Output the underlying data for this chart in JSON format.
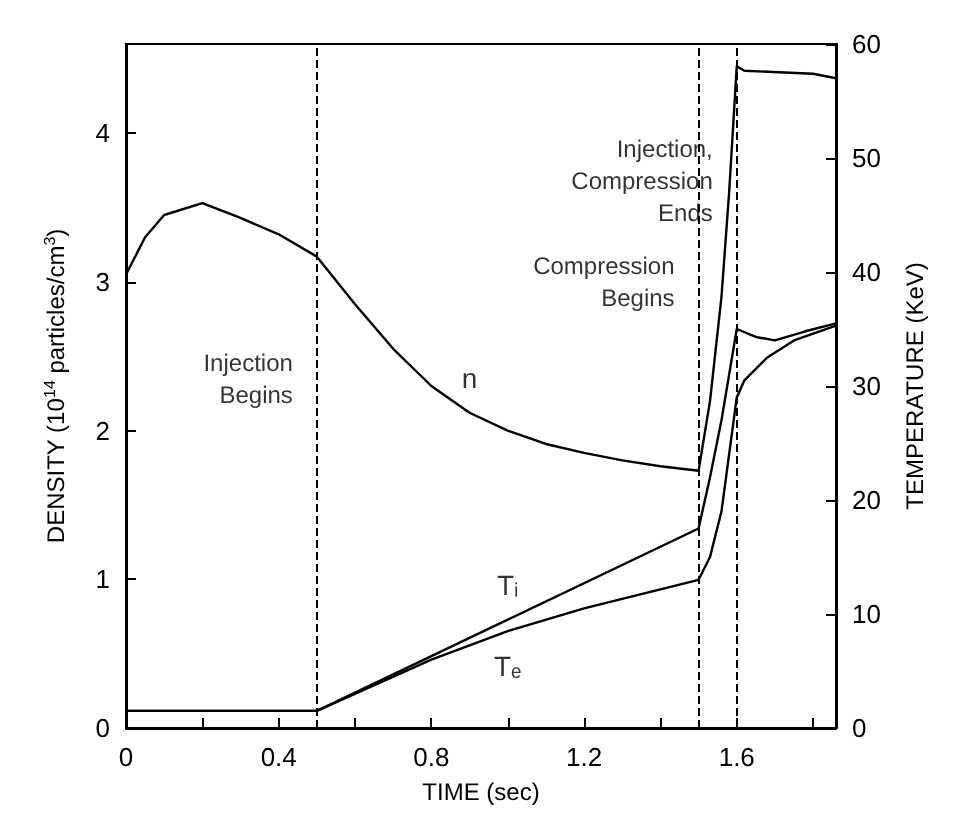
{
  "chart_data": {
    "type": "line",
    "xlabel": "TIME (sec)",
    "ylabel": "DENSITY (10$^{14}$ particles/cm$^{3}$)",
    "y2label": "TEMPERATURE (KeV)",
    "xlim": [
      0,
      1.86
    ],
    "xticks": [
      0,
      {
        "value": 0.2,
        "label": null
      },
      0.4,
      {
        "value": 0.6,
        "label": null
      },
      0.8,
      {
        "value": 1.0,
        "label": null
      },
      1.2,
      {
        "value": 1.4,
        "label": null
      },
      1.6,
      {
        "value": 1.8,
        "label": null
      }
    ],
    "ylim": [
      0,
      4.6
    ],
    "yticks": [
      0,
      1,
      2,
      3,
      4
    ],
    "y2lim": [
      0,
      60
    ],
    "y2ticks": [
      0,
      10,
      20,
      30,
      40,
      50,
      60
    ],
    "grid": false,
    "legend": false,
    "marker": "none",
    "line_style": "solid",
    "series": [
      {
        "name": "n",
        "color": "#000000",
        "x": [
          0,
          0.05,
          0.1,
          0.2,
          0.3,
          0.4,
          0.5,
          0.6,
          0.7,
          0.8,
          0.9,
          1.0,
          1.1,
          1.2,
          1.3,
          1.4,
          1.5,
          1.53,
          1.56,
          1.58,
          1.6,
          1.62,
          1.8,
          1.86
        ],
        "values": [
          3.05,
          3.3,
          3.45,
          3.53,
          3.43,
          3.32,
          3.17,
          2.85,
          2.55,
          2.3,
          2.12,
          2.0,
          1.91,
          1.85,
          1.8,
          1.76,
          1.73,
          2.2,
          2.9,
          3.6,
          4.45,
          4.42,
          4.4,
          4.37
        ]
      },
      {
        "name": "Tᵢ",
        "color": "#000000",
        "axis": "y2",
        "x": [
          0,
          0.5,
          1.0,
          1.5,
          1.53,
          1.56,
          1.58,
          1.6,
          1.65,
          1.7,
          1.78,
          1.86
        ],
        "values": [
          1.5,
          1.5,
          9.5,
          17.5,
          22,
          27,
          31,
          35,
          34.3,
          34,
          34.8,
          35.5
        ]
      },
      {
        "name": "Tₑ",
        "color": "#000000",
        "axis": "y2",
        "x": [
          0,
          0.5,
          0.8,
          1.0,
          1.2,
          1.5,
          1.53,
          1.56,
          1.58,
          1.6,
          1.62,
          1.68,
          1.75,
          1.86
        ],
        "values": [
          1.5,
          1.5,
          6,
          8.5,
          10.5,
          13,
          15,
          19,
          24,
          29,
          30.5,
          32.5,
          34,
          35.3
        ]
      }
    ],
    "ref_lines": [
      {
        "axis": "x",
        "value": 0.5,
        "line_style": "dashed",
        "color": "#000000"
      },
      {
        "axis": "x",
        "value": 1.5,
        "line_style": "dashed",
        "color": "#000000"
      },
      {
        "axis": "x",
        "value": 1.6,
        "line_style": "dashed",
        "color": "#000000"
      }
    ],
    "annotations": [
      {
        "text": "Injection\nBegins",
        "x": 0.5,
        "y": 2.35
      },
      {
        "text": "Compression\nBegins",
        "x": 1.5,
        "y": 3.0
      },
      {
        "text": "Injection,\nCompression\nEnds",
        "x": 1.6,
        "y": 3.68
      }
    ]
  }
}
